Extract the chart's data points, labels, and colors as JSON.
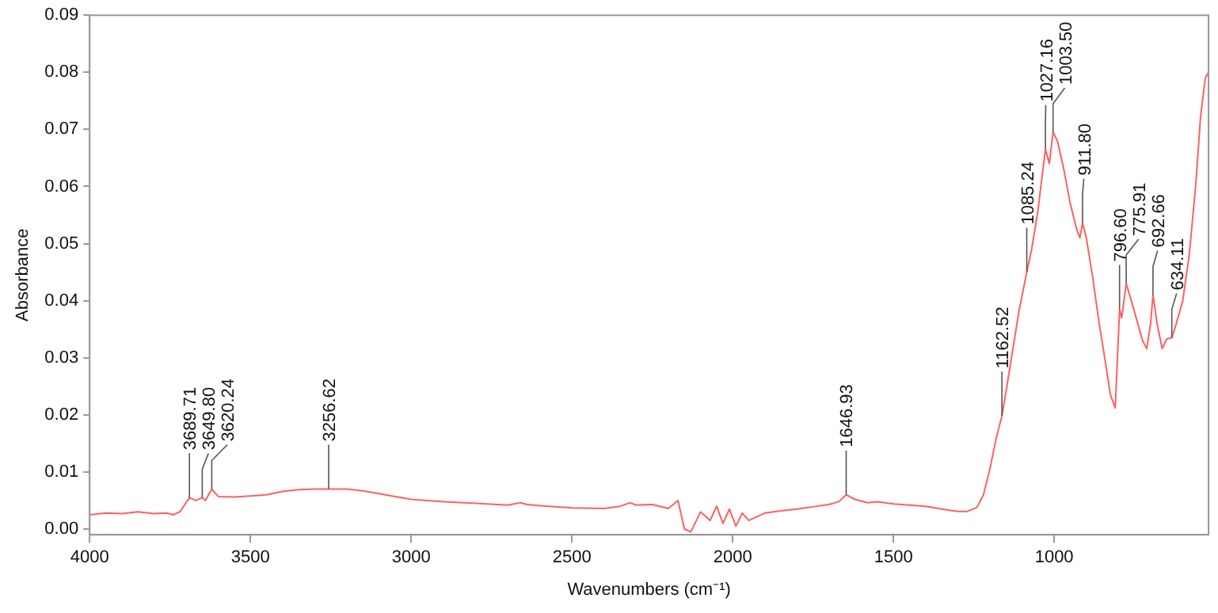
{
  "chart_data": {
    "type": "line",
    "xlabel": "Wavenumbers (cm⁻¹)",
    "ylabel": "Absorbance",
    "xlim": [
      4000,
      520
    ],
    "xticks": [
      4000,
      3500,
      3000,
      2500,
      2000,
      1500,
      1000
    ],
    "ylim": [
      -0.001,
      0.09
    ],
    "yticks": [
      {
        "value": 0,
        "label": "0.00"
      },
      0.01,
      0.02,
      0.03,
      0.04,
      0.05,
      0.06,
      0.07,
      0.08,
      0.09
    ],
    "grid": false,
    "legend": false,
    "marker": "none",
    "line_style": "solid",
    "series": [
      {
        "color": "#ff6060",
        "x": [
          4000,
          3950,
          3900,
          3850,
          3800,
          3760,
          3740,
          3720,
          3705,
          3689.71,
          3670,
          3649.8,
          3640,
          3620.24,
          3600,
          3550,
          3500,
          3450,
          3400,
          3350,
          3300,
          3256.62,
          3200,
          3150,
          3100,
          3050,
          3000,
          2900,
          2800,
          2700,
          2660,
          2640,
          2600,
          2500,
          2400,
          2350,
          2320,
          2300,
          2250,
          2200,
          2170,
          2150,
          2130,
          2100,
          2070,
          2050,
          2030,
          2010,
          1990,
          1970,
          1950,
          1900,
          1850,
          1800,
          1750,
          1700,
          1670,
          1646.93,
          1620,
          1580,
          1550,
          1500,
          1450,
          1400,
          1350,
          1300,
          1270,
          1240,
          1220,
          1200,
          1180,
          1162.52,
          1150,
          1130,
          1110,
          1085.24,
          1070,
          1050,
          1035,
          1027.16,
          1015,
          1003.5,
          990,
          970,
          950,
          930,
          920,
          911.8,
          900,
          880,
          860,
          840,
          825,
          810,
          796.6,
          790,
          775.91,
          760,
          740,
          725,
          712,
          700,
          692.66,
          680,
          664,
          650,
          634.11,
          620,
          600,
          580,
          560,
          545,
          530,
          520
        ],
        "values": [
          0.0025,
          0.0028,
          0.0027,
          0.003,
          0.0027,
          0.0028,
          0.0025,
          0.003,
          0.0042,
          0.0055,
          0.005,
          0.0055,
          0.005,
          0.007,
          0.0057,
          0.0056,
          0.0058,
          0.006,
          0.0066,
          0.0069,
          0.007,
          0.007,
          0.007,
          0.0067,
          0.0062,
          0.0057,
          0.0052,
          0.0048,
          0.0045,
          0.0042,
          0.0046,
          0.0043,
          0.0041,
          0.0037,
          0.0036,
          0.004,
          0.0046,
          0.0042,
          0.0043,
          0.0036,
          0.005,
          0.0,
          -0.0005,
          0.003,
          0.0015,
          0.004,
          0.001,
          0.0035,
          0.0005,
          0.0028,
          0.0015,
          0.0028,
          0.0032,
          0.0035,
          0.0039,
          0.0043,
          0.0048,
          0.006,
          0.0052,
          0.0046,
          0.0048,
          0.0044,
          0.0042,
          0.004,
          0.0035,
          0.0031,
          0.0031,
          0.0038,
          0.006,
          0.0105,
          0.016,
          0.0198,
          0.024,
          0.031,
          0.038,
          0.045,
          0.049,
          0.056,
          0.063,
          0.0665,
          0.064,
          0.0695,
          0.068,
          0.063,
          0.057,
          0.0525,
          0.051,
          0.0536,
          0.051,
          0.044,
          0.036,
          0.029,
          0.0235,
          0.0212,
          0.0385,
          0.037,
          0.043,
          0.04,
          0.036,
          0.033,
          0.0316,
          0.036,
          0.041,
          0.036,
          0.0316,
          0.0333,
          0.0335,
          0.036,
          0.04,
          0.048,
          0.06,
          0.072,
          0.079,
          0.08
        ]
      }
    ],
    "annotations": [
      {
        "text": "3689.71",
        "x": 3689.71,
        "y": 0.0055
      },
      {
        "text": "3649.80",
        "x": 3649.8,
        "y": 0.0055
      },
      {
        "text": "3620.24",
        "x": 3620.24,
        "y": 0.007
      },
      {
        "text": "3256.62",
        "x": 3256.62,
        "y": 0.007
      },
      {
        "text": "1646.93",
        "x": 1646.93,
        "y": 0.006
      },
      {
        "text": "1162.52",
        "x": 1162.52,
        "y": 0.0198
      },
      {
        "text": "1085.24",
        "x": 1085.24,
        "y": 0.045
      },
      {
        "text": "1027.16",
        "x": 1027.16,
        "y": 0.0665
      },
      {
        "text": "1003.50",
        "x": 1003.5,
        "y": 0.0695
      },
      {
        "text": "911.80",
        "x": 911.8,
        "y": 0.0536
      },
      {
        "text": "796.60",
        "x": 796.6,
        "y": 0.0385
      },
      {
        "text": "775.91",
        "x": 775.91,
        "y": 0.043
      },
      {
        "text": "692.66",
        "x": 692.66,
        "y": 0.041
      },
      {
        "text": "634.11",
        "x": 634.11,
        "y": 0.0335
      }
    ]
  }
}
